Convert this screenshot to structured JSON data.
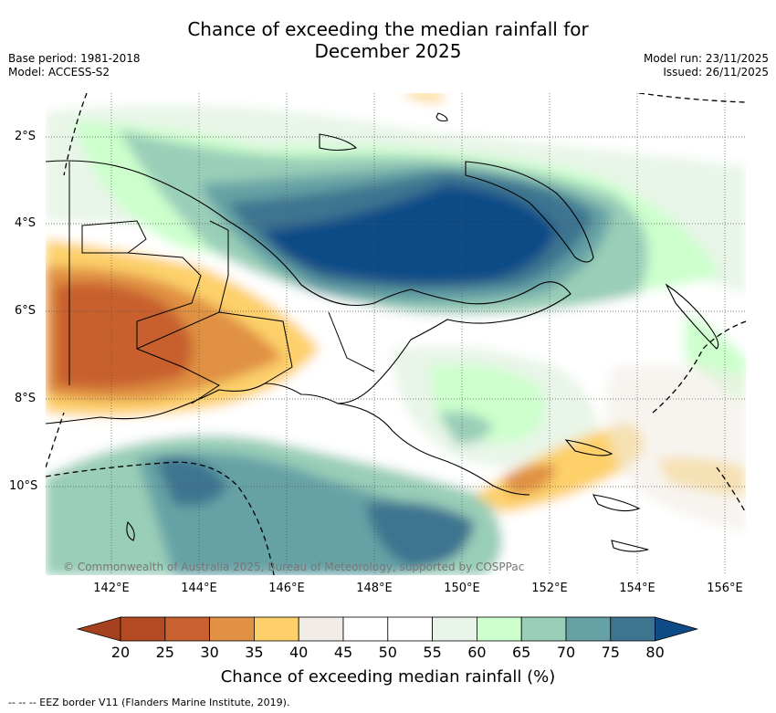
{
  "title": {
    "line1": "Chance of exceeding the median rainfall for",
    "line2": "December 2025"
  },
  "meta": {
    "base_period": "Base period: 1981-2018",
    "model": "Model: ACCESS-S2",
    "model_run": "Model run: 23/11/2025",
    "issued": "Issued: 26/11/2025"
  },
  "map": {
    "lat_labels": [
      "2°S",
      "4°S",
      "6°S",
      "8°S",
      "10°S"
    ],
    "lon_labels": [
      "142°E",
      "144°E",
      "146°E",
      "148°E",
      "150°E",
      "152°E",
      "154°E",
      "156°E"
    ],
    "copyright": "© Commonwealth of Australia 2025, Bureau of Meteorology, supported by COSPPac"
  },
  "colorbar": {
    "ticks": [
      "20",
      "25",
      "30",
      "35",
      "40",
      "45",
      "50",
      "55",
      "60",
      "65",
      "70",
      "75",
      "80"
    ],
    "colors": [
      "#a5411f",
      "#b34a22",
      "#c8612f",
      "#e09143",
      "#fdd06a",
      "#f1ede6",
      "#ffffff",
      "#ffffff",
      "#e8f5e8",
      "#ccffcc",
      "#99ceb8",
      "#66a2a5",
      "#3d7590",
      "#0f4c87"
    ],
    "title": "Chance of exceeding median rainfall (%)"
  },
  "legend": {
    "eez_label": "--  --  -- EEZ border V11 (Flanders Marine Institute, 2019)."
  }
}
